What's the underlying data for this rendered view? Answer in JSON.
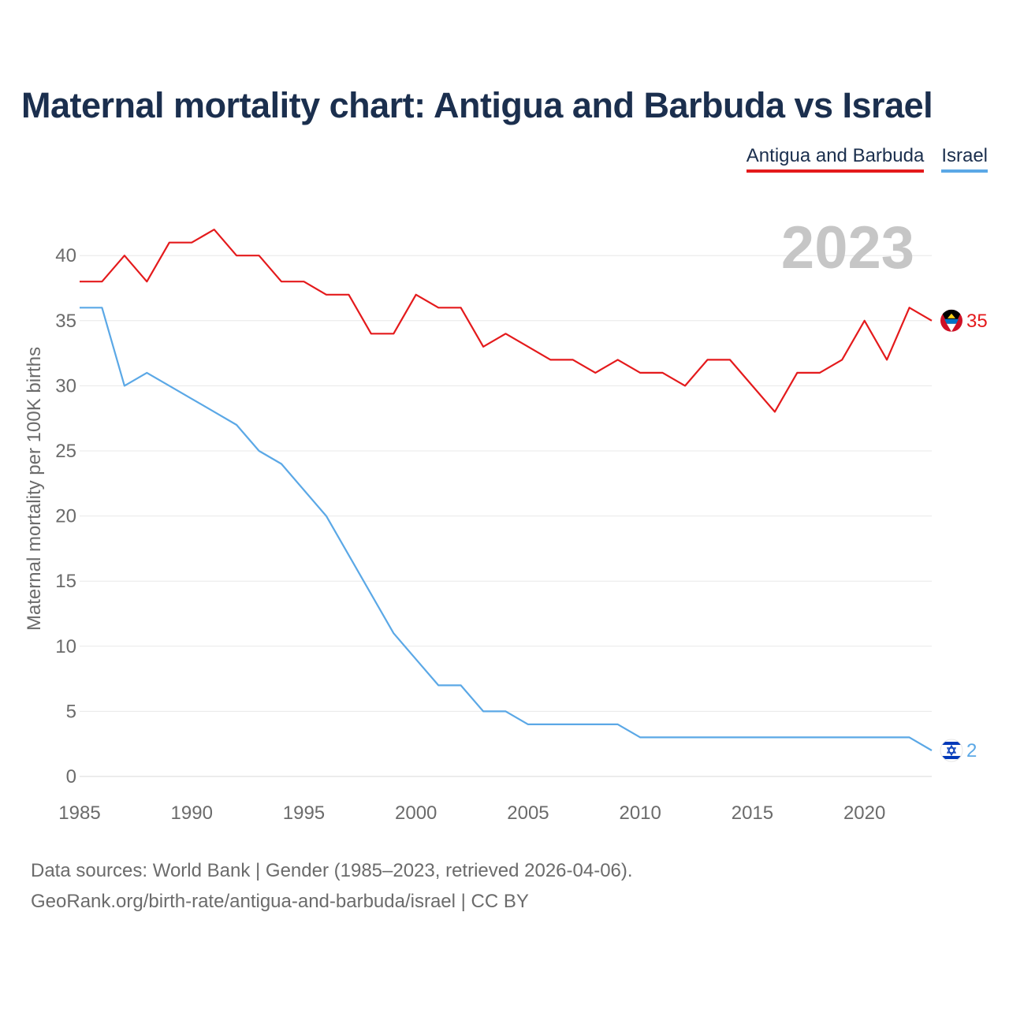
{
  "title": "Maternal mortality chart: Antigua and Barbuda vs Israel",
  "legend": {
    "items": [
      {
        "label": "Antigua and Barbuda",
        "color": "#e41a1c"
      },
      {
        "label": "Israel",
        "color": "#5ba8e6"
      }
    ]
  },
  "footer": {
    "line1": "Data sources: World Bank | Gender (1985–2023, retrieved 2026-04-06).",
    "line2": "GeoRank.org/birth-rate/antigua-and-barbuda/israel | CC BY"
  },
  "chart_data": {
    "type": "line",
    "year_label": "2023",
    "ylabel": "Maternal mortality per 100K births",
    "xlim": [
      1985,
      2023
    ],
    "ylim": [
      0,
      43
    ],
    "xticks": [
      1985,
      1990,
      1995,
      2000,
      2005,
      2010,
      2015,
      2020
    ],
    "yticks": [
      0,
      5,
      10,
      15,
      20,
      25,
      30,
      35,
      40
    ],
    "grid": true,
    "x": [
      1985,
      1986,
      1987,
      1988,
      1989,
      1990,
      1991,
      1992,
      1993,
      1994,
      1995,
      1996,
      1997,
      1998,
      1999,
      2000,
      2001,
      2002,
      2003,
      2004,
      2005,
      2006,
      2007,
      2008,
      2009,
      2010,
      2011,
      2012,
      2013,
      2014,
      2015,
      2016,
      2017,
      2018,
      2019,
      2020,
      2021,
      2022,
      2023
    ],
    "series": [
      {
        "name": "Antigua and Barbuda",
        "color": "#e41a1c",
        "end_label": "35",
        "values": [
          38,
          38,
          40,
          38,
          41,
          41,
          42,
          40,
          40,
          38,
          38,
          37,
          37,
          34,
          34,
          37,
          36,
          36,
          33,
          34,
          33,
          32,
          32,
          31,
          32,
          31,
          31,
          30,
          32,
          32,
          30,
          28,
          31,
          31,
          32,
          35,
          32,
          36,
          35
        ]
      },
      {
        "name": "Israel",
        "color": "#5ba8e6",
        "end_label": "2",
        "values": [
          36,
          36,
          30,
          31,
          30,
          29,
          28,
          27,
          25,
          24,
          22,
          20,
          17,
          14,
          11,
          9,
          7,
          7,
          5,
          5,
          4,
          4,
          4,
          4,
          4,
          3,
          3,
          3,
          3,
          3,
          3,
          3,
          3,
          3,
          3,
          3,
          3,
          3,
          2
        ]
      }
    ]
  }
}
